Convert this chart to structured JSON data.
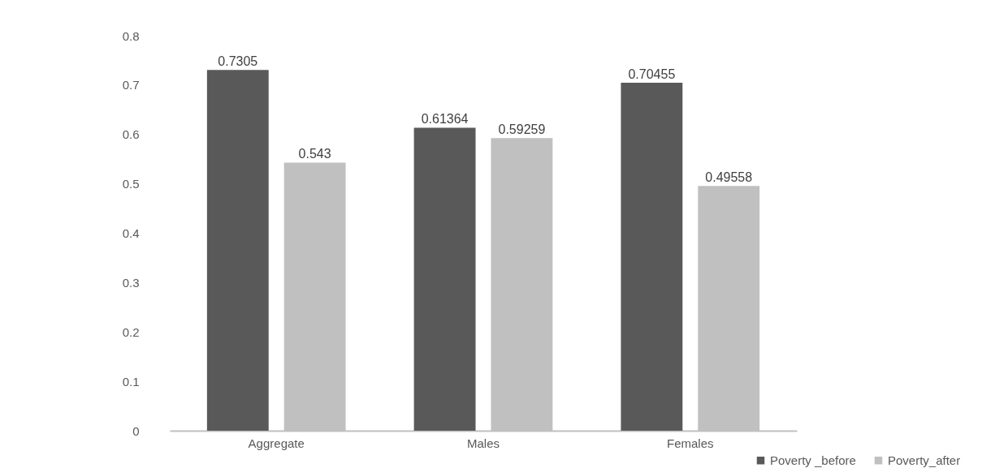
{
  "chart_data": {
    "type": "bar",
    "categories": [
      "Aggregate",
      "Males",
      "Females"
    ],
    "series": [
      {
        "name": "Poverty _before",
        "color": "#595959",
        "values": [
          0.7305,
          0.61364,
          0.70455
        ]
      },
      {
        "name": "Poverty_after",
        "color": "#c0c0c0",
        "values": [
          0.543,
          0.59259,
          0.49558
        ]
      }
    ],
    "ylim": [
      0,
      0.8
    ],
    "yticks": [
      0,
      0.1,
      0.2,
      0.3,
      0.4,
      0.5,
      0.6,
      0.7,
      0.8
    ],
    "grid": false,
    "legend": "bottom right",
    "data_labels": true
  }
}
